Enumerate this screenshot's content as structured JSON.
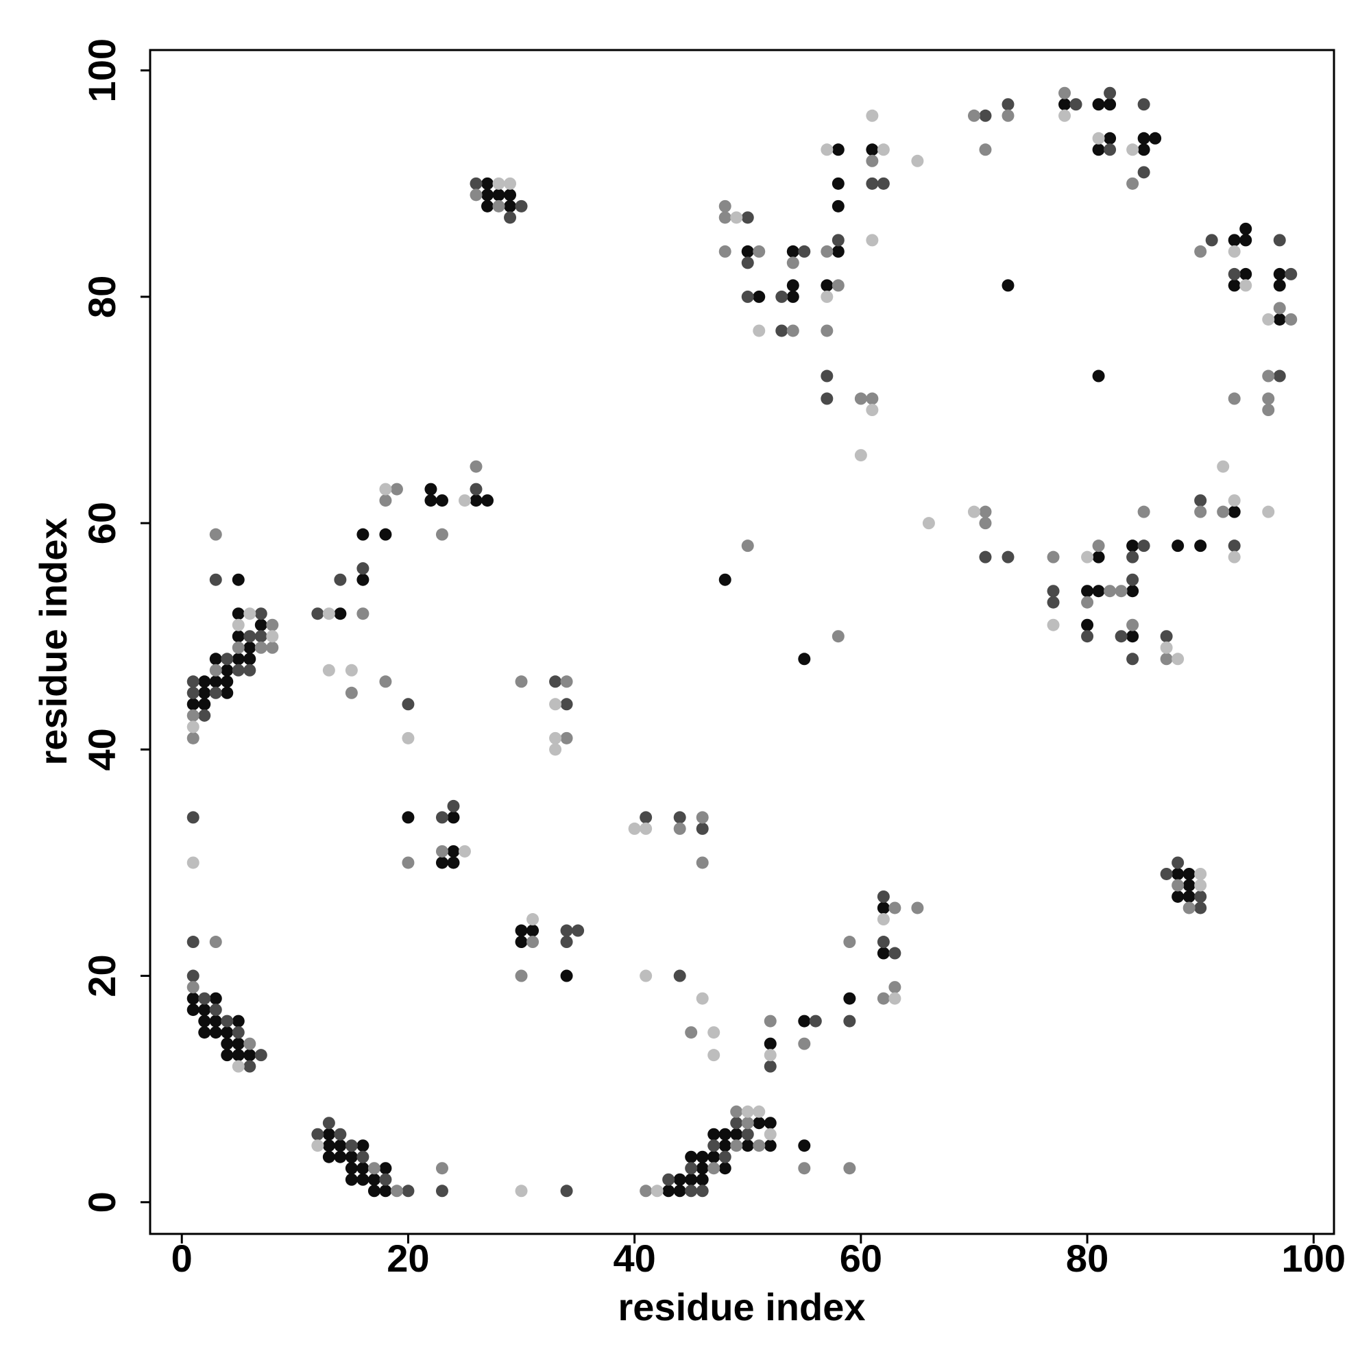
{
  "chart_data": {
    "type": "scatter",
    "x_label": "residue index",
    "y_label": "residue index",
    "xlim": [
      -2.8,
      101.8
    ],
    "ylim": [
      -2.8,
      101.8
    ],
    "xticks": [
      0,
      20,
      40,
      60,
      80,
      100
    ],
    "yticks": [
      0,
      20,
      40,
      60,
      80,
      100
    ],
    "series": [
      {
        "color": "#0d0d0d",
        "x": [
          1,
          1,
          2,
          2,
          2,
          3,
          3,
          3,
          4,
          4,
          4,
          5,
          5,
          5,
          6,
          1,
          2,
          2,
          2,
          3,
          3,
          4,
          4,
          4,
          5,
          5,
          5,
          6,
          6,
          7,
          5,
          13,
          13,
          13,
          14,
          14,
          15,
          15,
          15,
          16,
          16,
          16,
          17,
          17,
          18,
          18,
          14,
          16,
          16,
          18,
          22,
          22,
          23,
          26,
          27,
          27,
          27,
          27,
          28,
          29,
          29,
          20,
          23,
          24,
          24,
          24,
          30,
          30,
          31,
          34,
          43,
          44,
          44,
          45,
          45,
          46,
          46,
          46,
          47,
          47,
          48,
          48,
          48,
          49,
          50,
          51,
          52,
          52,
          55,
          52,
          55,
          59,
          62,
          62,
          50,
          51,
          54,
          54,
          54,
          58,
          58,
          58,
          58,
          57,
          61,
          48,
          55,
          78,
          81,
          82,
          82,
          81,
          85,
          86,
          85,
          73,
          81,
          93,
          94,
          94,
          94,
          93,
          97,
          97,
          97,
          93,
          81,
          80,
          81,
          80,
          84,
          84,
          84,
          88,
          90,
          88,
          89,
          89,
          88,
          89
        ],
        "values": [
          18,
          17,
          17,
          16,
          15,
          18,
          16,
          15,
          15,
          14,
          13,
          16,
          14,
          13,
          13,
          44,
          44,
          45,
          46,
          46,
          48,
          45,
          46,
          47,
          48,
          50,
          52,
          48,
          49,
          51,
          55,
          6,
          5,
          4,
          5,
          4,
          4,
          3,
          2,
          5,
          3,
          2,
          2,
          1,
          3,
          1,
          52,
          59,
          55,
          59,
          63,
          62,
          62,
          62,
          62,
          90,
          89,
          88,
          89,
          89,
          88,
          34,
          30,
          34,
          31,
          30,
          24,
          23,
          24,
          20,
          1,
          2,
          1,
          4,
          2,
          4,
          3,
          2,
          6,
          4,
          6,
          5,
          3,
          6,
          5,
          7,
          7,
          5,
          5,
          14,
          16,
          18,
          26,
          22,
          84,
          80,
          80,
          81,
          84,
          84,
          88,
          90,
          93,
          81,
          93,
          55,
          48,
          97,
          97,
          97,
          94,
          93,
          94,
          94,
          93,
          81,
          73,
          85,
          85,
          86,
          82,
          81,
          82,
          81,
          78,
          61,
          57,
          54,
          54,
          51,
          54,
          58,
          50,
          58,
          58,
          29,
          29,
          28,
          27,
          27
        ]
      },
      {
        "color": "#4a4a4a",
        "x": [
          1,
          2,
          3,
          4,
          5,
          6,
          7,
          1,
          1,
          1,
          1,
          2,
          3,
          4,
          5,
          6,
          6,
          7,
          7,
          3,
          12,
          13,
          14,
          15,
          16,
          18,
          20,
          23,
          34,
          12,
          14,
          16,
          20,
          26,
          26,
          29,
          30,
          23,
          24,
          33,
          34,
          34,
          34,
          35,
          41,
          44,
          46,
          44,
          43,
          45,
          45,
          46,
          47,
          48,
          49,
          50,
          52,
          56,
          59,
          62,
          62,
          63,
          50,
          50,
          50,
          53,
          55,
          53,
          58,
          57,
          57,
          61,
          62,
          71,
          73,
          79,
          82,
          82,
          85,
          85,
          91,
          93,
          97,
          98,
          97,
          90,
          93,
          71,
          73,
          77,
          77,
          80,
          84,
          84,
          85,
          83,
          84,
          87,
          88,
          87,
          90,
          90
        ],
        "values": [
          20,
          18,
          17,
          16,
          15,
          12,
          13,
          23,
          34,
          45,
          46,
          43,
          45,
          48,
          47,
          47,
          50,
          50,
          52,
          55,
          6,
          7,
          6,
          5,
          4,
          2,
          1,
          1,
          1,
          52,
          55,
          56,
          44,
          63,
          90,
          87,
          88,
          34,
          35,
          46,
          44,
          24,
          23,
          24,
          34,
          34,
          33,
          20,
          2,
          3,
          1,
          1,
          5,
          4,
          7,
          6,
          12,
          16,
          16,
          27,
          23,
          22,
          87,
          83,
          80,
          80,
          84,
          77,
          85,
          73,
          71,
          90,
          90,
          96,
          97,
          97,
          98,
          93,
          97,
          91,
          85,
          82,
          85,
          82,
          73,
          62,
          58,
          57,
          57,
          54,
          53,
          50,
          55,
          57,
          58,
          50,
          48,
          50,
          30,
          29,
          27,
          26
        ]
      },
      {
        "color": "#888888",
        "x": [
          1,
          6,
          3,
          1,
          1,
          3,
          5,
          7,
          8,
          8,
          3,
          17,
          19,
          23,
          15,
          16,
          18,
          19,
          18,
          23,
          26,
          26,
          28,
          20,
          23,
          30,
          34,
          34,
          31,
          30,
          44,
          46,
          46,
          45,
          41,
          47,
          49,
          49,
          50,
          51,
          55,
          59,
          52,
          55,
          59,
          62,
          63,
          63,
          65,
          48,
          48,
          48,
          51,
          54,
          54,
          57,
          58,
          57,
          60,
          61,
          61,
          50,
          58,
          70,
          71,
          73,
          78,
          84,
          90,
          97,
          98,
          96,
          96,
          96,
          93,
          90,
          92,
          71,
          71,
          77,
          81,
          80,
          82,
          83,
          84,
          85,
          87,
          88,
          89
        ],
        "values": [
          19,
          14,
          23,
          41,
          43,
          47,
          49,
          49,
          49,
          51,
          59,
          3,
          1,
          3,
          45,
          52,
          62,
          63,
          46,
          59,
          65,
          89,
          88,
          30,
          31,
          46,
          46,
          41,
          23,
          20,
          33,
          34,
          30,
          15,
          1,
          3,
          8,
          5,
          7,
          5,
          3,
          3,
          16,
          14,
          23,
          18,
          19,
          26,
          26,
          88,
          87,
          84,
          84,
          83,
          77,
          84,
          81,
          77,
          71,
          71,
          92,
          58,
          50,
          96,
          93,
          96,
          98,
          90,
          84,
          79,
          78,
          73,
          71,
          70,
          71,
          61,
          61,
          61,
          60,
          57,
          58,
          53,
          54,
          54,
          51,
          61,
          48,
          28,
          26
        ]
      },
      {
        "color": "#bdbdbd",
        "x": [
          5,
          1,
          1,
          5,
          6,
          8,
          12,
          30,
          13,
          13,
          15,
          18,
          20,
          25,
          28,
          29,
          25,
          33,
          33,
          33,
          31,
          40,
          41,
          41,
          46,
          47,
          47,
          42,
          50,
          51,
          52,
          52,
          62,
          63,
          49,
          51,
          57,
          57,
          61,
          60,
          61,
          62,
          61,
          65,
          66,
          78,
          81,
          84,
          93,
          94,
          96,
          92,
          93,
          96,
          93,
          70,
          77,
          80,
          87,
          88,
          90,
          90
        ],
        "values": [
          12,
          30,
          42,
          51,
          52,
          50,
          5,
          1,
          52,
          47,
          47,
          63,
          41,
          62,
          90,
          90,
          31,
          44,
          41,
          40,
          25,
          33,
          33,
          20,
          18,
          15,
          13,
          1,
          8,
          8,
          6,
          13,
          25,
          18,
          87,
          77,
          93,
          80,
          70,
          66,
          85,
          93,
          96,
          92,
          60,
          96,
          94,
          93,
          84,
          81,
          78,
          65,
          62,
          61,
          57,
          61,
          51,
          57,
          49,
          48,
          29,
          28
        ]
      }
    ]
  }
}
